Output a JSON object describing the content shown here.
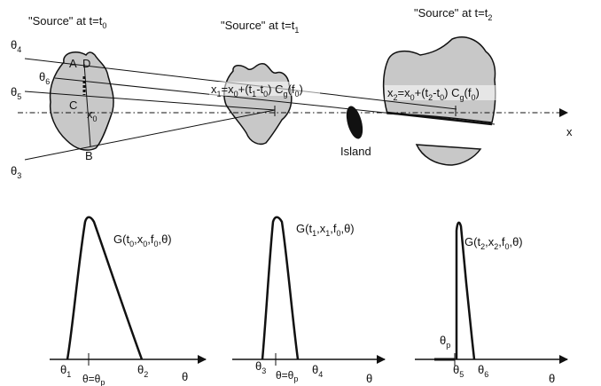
{
  "top_panel": {
    "source_labels": [
      {
        "prefix": "\"Source\" at t=t",
        "sub": "0"
      },
      {
        "prefix": "\"Source\" at t=t",
        "sub": "1"
      },
      {
        "prefix": "\"Source\" at t=t",
        "sub": "2"
      }
    ],
    "theta_labels": [
      "θ",
      "4",
      "6",
      "5",
      "3"
    ],
    "point_labels": [
      "A",
      "D",
      "C",
      "B"
    ],
    "x0_label": [
      "x",
      "0"
    ],
    "x1_formula": [
      "x",
      "1",
      "=x",
      "0",
      "+(t",
      "1",
      "-t",
      "0",
      ") C",
      "g",
      "(f",
      "0",
      ")"
    ],
    "x2_formula": [
      "x",
      "2",
      "=x",
      "0",
      "+(t",
      "2",
      "-t",
      "0",
      ") C",
      "g",
      "(f",
      "0",
      ")"
    ],
    "island_label": "Island",
    "axis_label": "x",
    "colors": {
      "source_fill": "#c8c8c8",
      "island_fill": "#111111",
      "stroke": "#111111"
    }
  },
  "bottom_panels": [
    {
      "function_label": [
        "G(t",
        "0",
        ",x",
        "0",
        ",f",
        "0",
        ",θ)"
      ],
      "axis_label": "θ",
      "tick_labels": [
        [
          "θ",
          "1"
        ],
        [
          "θ=θ",
          "p"
        ],
        [
          "θ",
          "2"
        ]
      ]
    },
    {
      "function_label": [
        "G(t",
        "1",
        ",x",
        "1",
        ",f",
        "0",
        ",θ)"
      ],
      "axis_label": "θ",
      "tick_labels": [
        [
          "θ",
          "3"
        ],
        [
          "θ=θ",
          "p"
        ],
        [
          "θ",
          "4"
        ]
      ]
    },
    {
      "function_label": [
        "G(t",
        "2",
        ",x",
        "2",
        ",f",
        "0",
        ",θ)"
      ],
      "axis_label": "θ",
      "tick_labels": [
        [
          "θ",
          "p"
        ],
        [
          "θ",
          "5"
        ],
        [
          "θ",
          "6"
        ]
      ]
    }
  ]
}
